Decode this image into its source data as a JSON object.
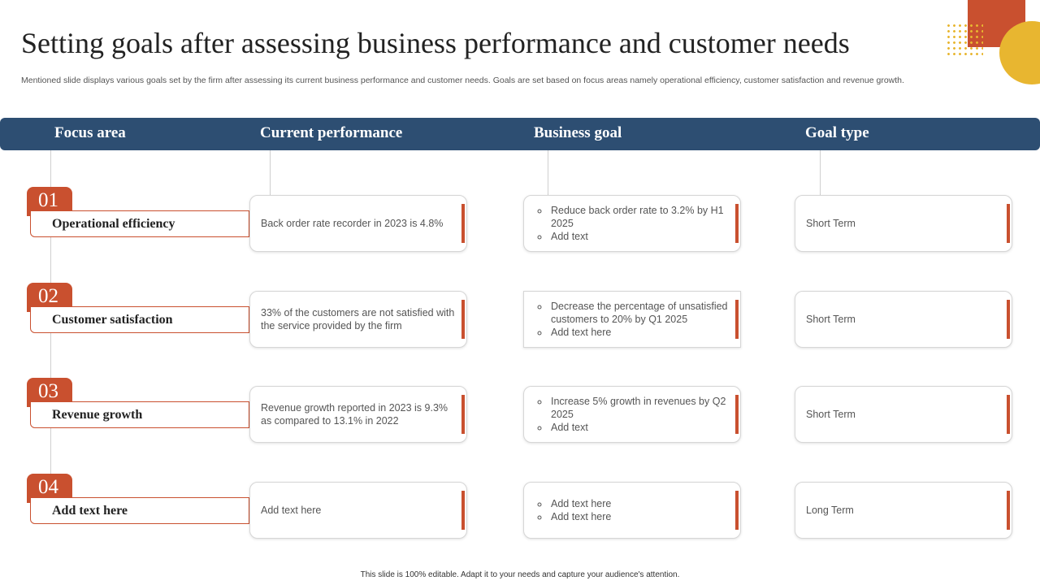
{
  "title": "Setting goals after assessing business performance and customer needs",
  "subtitle": "Mentioned slide displays various goals set by the firm after assessing its current business performance and customer needs. Goals are set based on focus areas namely operational efficiency, customer satisfaction and revenue growth.",
  "table": {
    "headers": [
      "Focus area",
      "Current performance",
      "Business goal",
      "Goal type"
    ],
    "rows": [
      {
        "number": "01",
        "focus": "Operational efficiency",
        "current": "Back order rate recorder in 2023 is 4.8%",
        "goals": [
          "Reduce back order rate to 3.2% by H1 2025",
          "Add text"
        ],
        "type": "Short Term"
      },
      {
        "number": "02",
        "focus": "Customer satisfaction",
        "current": "33% of the customers are not satisfied with the service provided by the firm",
        "goals": [
          "Decrease the percentage of unsatisfied customers to 20% by Q1 2025",
          "Add text here"
        ],
        "type": "Short Term"
      },
      {
        "number": "03",
        "focus": "Revenue growth",
        "current": "Revenue growth reported in 2023 is 9.3% as compared to 13.1% in 2022",
        "goals": [
          "Increase 5% growth in revenues by Q2 2025",
          "Add text"
        ],
        "type": "Short Term"
      },
      {
        "number": "04",
        "focus": "Add text here",
        "current": "Add text here",
        "goals": [
          "Add text here",
          "Add text here"
        ],
        "type": "Long Term"
      }
    ]
  },
  "footer": "This slide is 100% editable. Adapt it to your needs and capture your audience's attention."
}
